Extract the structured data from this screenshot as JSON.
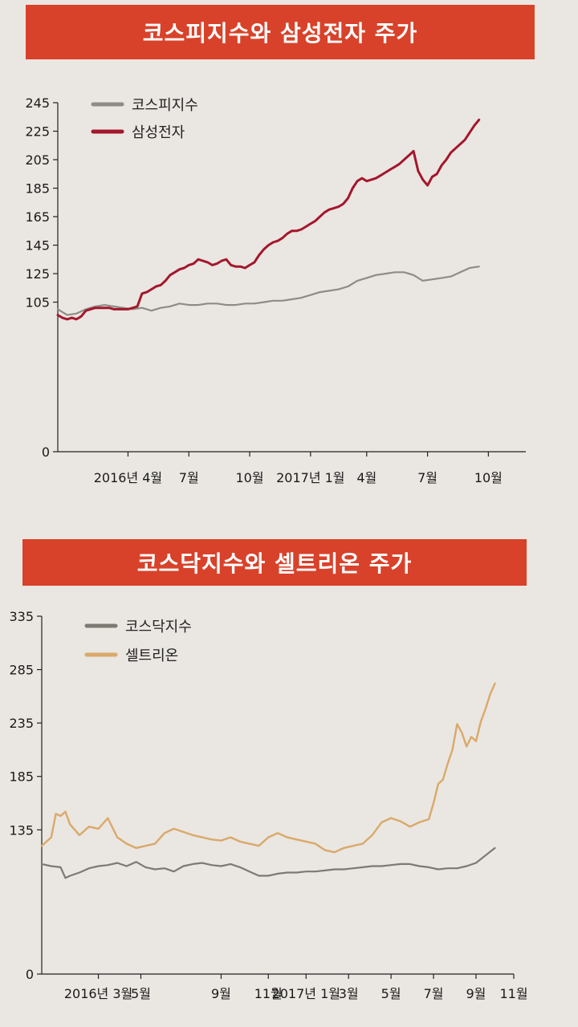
{
  "chart_data": [
    {
      "type": "line",
      "title": "코스피지수와 삼성전자 주가",
      "ylim": [
        0,
        245
      ],
      "yticks": [
        0,
        105,
        125,
        145,
        165,
        185,
        205,
        225,
        245
      ],
      "x_range": [
        0,
        100
      ],
      "xticks": [
        {
          "label": "2016년 4월",
          "x": 15
        },
        {
          "label": "7월",
          "x": 28
        },
        {
          "label": "10월",
          "x": 41
        },
        {
          "label": "2017년 1월",
          "x": 54
        },
        {
          "label": "4월",
          "x": 66
        },
        {
          "label": "7월",
          "x": 79
        },
        {
          "label": "10월",
          "x": 92
        }
      ],
      "legend_position": "top-left",
      "series": [
        {
          "name": "코스피지수",
          "color": "#8f8c86",
          "x": [
            0,
            2,
            4,
            6,
            8,
            10,
            12,
            14,
            16,
            18,
            20,
            22,
            24,
            26,
            28,
            30,
            32,
            34,
            36,
            38,
            40,
            42,
            44,
            46,
            48,
            50,
            52,
            54,
            56,
            58,
            60,
            62,
            64,
            66,
            68,
            70,
            72,
            74,
            76,
            78,
            80,
            82,
            84,
            86,
            88,
            90
          ],
          "values": [
            100,
            96,
            97,
            100,
            102,
            103,
            102,
            101,
            100,
            101,
            99,
            101,
            102,
            104,
            103,
            103,
            104,
            104,
            103,
            103,
            104,
            104,
            105,
            106,
            106,
            107,
            108,
            110,
            112,
            113,
            114,
            116,
            120,
            122,
            124,
            125,
            126,
            126,
            124,
            120,
            121,
            122,
            123,
            126,
            129,
            130
          ]
        },
        {
          "name": "삼성전자",
          "color": "#a3172d",
          "x": [
            0,
            1,
            2,
            3,
            4,
            5,
            6,
            7,
            8,
            9,
            10,
            11,
            12,
            13,
            14,
            15,
            16,
            17,
            18,
            19,
            20,
            21,
            22,
            23,
            24,
            25,
            26,
            27,
            28,
            29,
            30,
            31,
            32,
            33,
            34,
            35,
            36,
            37,
            38,
            39,
            40,
            41,
            42,
            43,
            44,
            45,
            46,
            47,
            48,
            49,
            50,
            51,
            52,
            53,
            54,
            55,
            56,
            57,
            58,
            59,
            60,
            61,
            62,
            63,
            64,
            65,
            66,
            67,
            68,
            69,
            70,
            71,
            72,
            73,
            74,
            75,
            76,
            77,
            78,
            79,
            80,
            81,
            82,
            83,
            84,
            85,
            86,
            87,
            88,
            89,
            90
          ],
          "values": [
            96,
            94,
            93,
            94,
            93,
            95,
            99,
            100,
            101,
            101,
            101,
            101,
            100,
            100,
            100,
            100,
            101,
            102,
            111,
            112,
            114,
            116,
            117,
            120,
            124,
            126,
            128,
            129,
            131,
            132,
            135,
            134,
            133,
            131,
            132,
            134,
            135,
            131,
            130,
            130,
            129,
            131,
            133,
            138,
            142,
            145,
            147,
            148,
            150,
            153,
            155,
            155,
            156,
            158,
            160,
            162,
            165,
            168,
            170,
            171,
            172,
            174,
            178,
            185,
            190,
            192,
            190,
            191,
            192,
            194,
            196,
            198,
            200,
            202,
            205,
            208,
            211,
            197,
            191,
            187,
            193,
            195,
            201,
            205,
            210,
            213,
            216,
            219,
            224,
            229,
            233
          ]
        }
      ]
    },
    {
      "type": "line",
      "title": "코스닥지수와 셀트리온 주가",
      "ylim": [
        0,
        335
      ],
      "yticks": [
        0,
        135,
        185,
        235,
        285,
        335
      ],
      "x_range": [
        0,
        100
      ],
      "xticks": [
        {
          "label": "2016년 3월",
          "x": 12
        },
        {
          "label": "5월",
          "x": 21
        },
        {
          "label": "9월",
          "x": 38
        },
        {
          "label": "11월",
          "x": 48
        },
        {
          "label": "2017년 1월",
          "x": 56
        },
        {
          "label": "3월",
          "x": 65
        },
        {
          "label": "5월",
          "x": 74
        },
        {
          "label": "7월",
          "x": 83
        },
        {
          "label": "9월",
          "x": 92
        },
        {
          "label": "11월",
          "x": 100
        }
      ],
      "legend_position": "top-left",
      "series": [
        {
          "name": "코스닥지수",
          "color": "#7d7a74",
          "x": [
            0,
            2,
            4,
            5,
            6,
            8,
            10,
            12,
            14,
            16,
            18,
            20,
            22,
            24,
            26,
            28,
            30,
            32,
            34,
            36,
            38,
            40,
            42,
            44,
            46,
            48,
            50,
            52,
            54,
            56,
            58,
            60,
            62,
            64,
            66,
            68,
            70,
            72,
            74,
            76,
            78,
            80,
            82,
            84,
            86,
            88,
            90,
            92,
            94,
            96
          ],
          "values": [
            103,
            101,
            100,
            90,
            92,
            95,
            99,
            101,
            102,
            104,
            101,
            105,
            100,
            98,
            99,
            96,
            101,
            103,
            104,
            102,
            101,
            103,
            100,
            96,
            92,
            92,
            94,
            95,
            95,
            96,
            96,
            97,
            98,
            98,
            99,
            100,
            101,
            101,
            102,
            103,
            103,
            101,
            100,
            98,
            99,
            99,
            101,
            104,
            111,
            118
          ]
        },
        {
          "name": "셀트리온",
          "color": "#d9a96a",
          "x": [
            0,
            2,
            3,
            4,
            5,
            6,
            8,
            10,
            12,
            14,
            16,
            18,
            20,
            22,
            24,
            26,
            28,
            30,
            32,
            34,
            36,
            38,
            40,
            42,
            44,
            46,
            48,
            50,
            52,
            54,
            56,
            58,
            60,
            62,
            64,
            66,
            68,
            70,
            72,
            74,
            76,
            78,
            80,
            82,
            83,
            84,
            85,
            86,
            87,
            88,
            89,
            90,
            91,
            92,
            93,
            94,
            95,
            96
          ],
          "values": [
            120,
            128,
            150,
            148,
            152,
            140,
            130,
            138,
            136,
            146,
            128,
            122,
            118,
            120,
            122,
            132,
            136,
            133,
            130,
            128,
            126,
            125,
            128,
            124,
            122,
            120,
            128,
            132,
            128,
            126,
            124,
            122,
            116,
            114,
            118,
            120,
            122,
            130,
            142,
            146,
            143,
            138,
            142,
            145,
            160,
            178,
            182,
            197,
            210,
            234,
            226,
            213,
            222,
            218,
            236,
            248,
            262,
            272
          ]
        }
      ]
    }
  ]
}
